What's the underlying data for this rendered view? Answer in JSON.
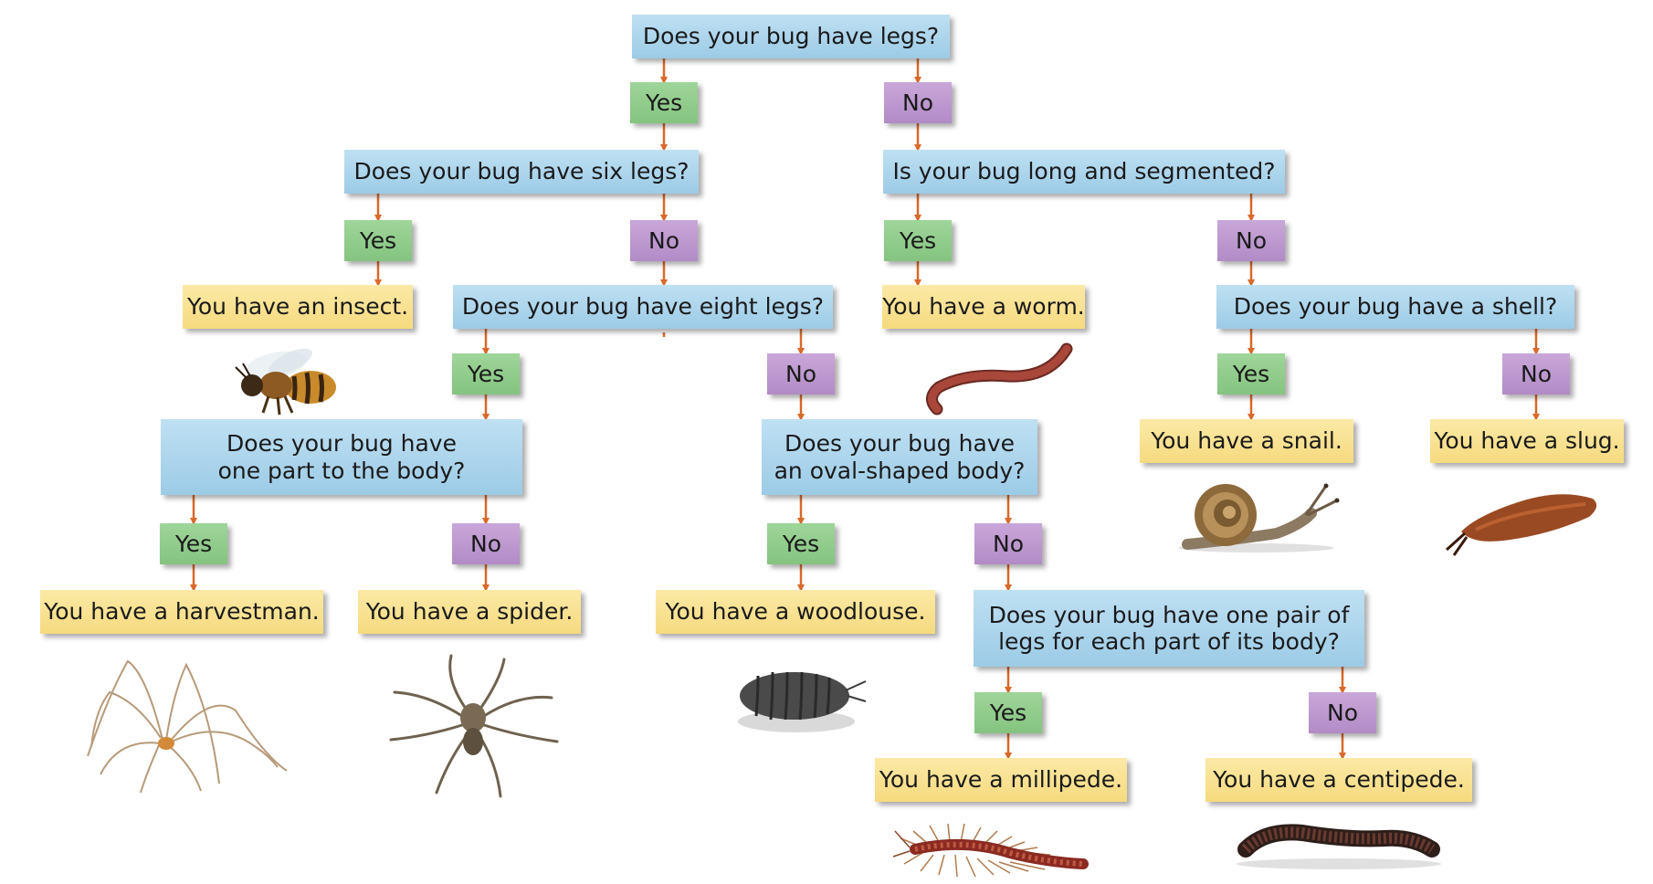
{
  "nodes": {
    "q_legs": "Does your bug have legs?",
    "q_six_legs": "Does your bug have six legs?",
    "q_long_segmented": "Is your bug long and segmented?",
    "q_eight_legs": "Does your bug have eight legs?",
    "q_shell": "Does your bug have a shell?",
    "q_one_part_line1": "Does your bug have",
    "q_one_part_line2": "one part to the body?",
    "q_oval_line1": "Does your bug have",
    "q_oval_line2": "an oval-shaped body?",
    "q_pair_line1": "Does your bug have one pair of",
    "q_pair_line2": "legs for each part of its body?",
    "a_insect": "You have an insect.",
    "a_worm": "You have a worm.",
    "a_snail": "You have a snail.",
    "a_slug": "You have a slug.",
    "a_harvestman": "You have a harvestman.",
    "a_spider": "You have a spider.",
    "a_woodlouse": "You have a woodlouse.",
    "a_millipede": "You have a millipede.",
    "a_centipede": "You have a centipede."
  },
  "labels": {
    "yes": "Yes",
    "no": "No"
  },
  "colors": {
    "question": "#a9d4ec",
    "yes": "#8fcb8a",
    "no": "#bd98cf",
    "answer": "#f8e08f",
    "arrow": "#d9692a"
  },
  "pictures": [
    "bee",
    "earthworm",
    "snail",
    "slug",
    "harvestman",
    "spider",
    "woodlouse",
    "centipede",
    "millipede"
  ]
}
